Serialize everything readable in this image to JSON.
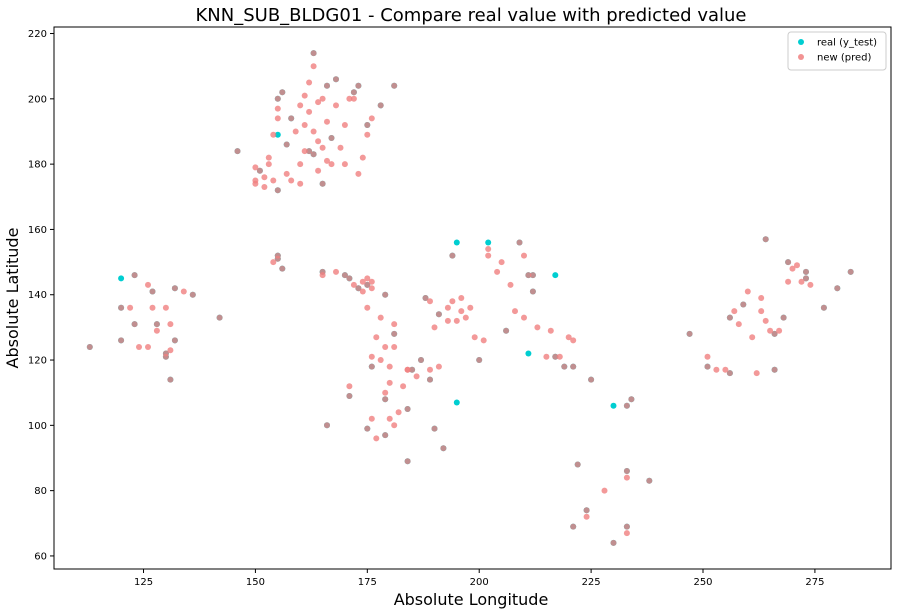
{
  "chart_data": {
    "type": "scatter",
    "title": "KNN_SUB_BLDG01 - Compare real value with predicted value",
    "xlabel": "Absolute Longitude",
    "ylabel": "Absolute Latitude",
    "xlim": [
      105,
      292
    ],
    "ylim": [
      56,
      222
    ],
    "xticks": [
      125,
      150,
      175,
      200,
      225,
      250,
      275
    ],
    "yticks": [
      60,
      80,
      100,
      120,
      140,
      160,
      180,
      200,
      220
    ],
    "grid": false,
    "legend_position": "top-right",
    "series": [
      {
        "name": "real (y_test)",
        "color": "#00CED1",
        "points": [
          [
            113,
            124
          ],
          [
            120,
            136
          ],
          [
            120,
            126
          ],
          [
            120,
            145
          ],
          [
            123,
            131
          ],
          [
            123,
            146
          ],
          [
            127,
            141
          ],
          [
            128,
            131
          ],
          [
            130,
            121
          ],
          [
            130,
            122
          ],
          [
            132,
            142
          ],
          [
            132,
            126
          ],
          [
            131,
            114
          ],
          [
            136,
            140
          ],
          [
            142,
            133
          ],
          [
            146,
            184
          ],
          [
            151,
            178
          ],
          [
            155,
            189
          ],
          [
            155,
            200
          ],
          [
            155,
            172
          ],
          [
            156,
            202
          ],
          [
            157,
            186
          ],
          [
            158,
            194
          ],
          [
            162,
            184
          ],
          [
            163,
            214
          ],
          [
            163,
            183
          ],
          [
            165,
            174
          ],
          [
            166,
            204
          ],
          [
            167,
            188
          ],
          [
            168,
            206
          ],
          [
            172,
            202
          ],
          [
            173,
            204
          ],
          [
            175,
            192
          ],
          [
            178,
            198
          ],
          [
            181,
            204
          ],
          [
            155,
            151
          ],
          [
            155,
            152
          ],
          [
            156,
            148
          ],
          [
            165,
            147
          ],
          [
            170,
            146
          ],
          [
            171,
            145
          ],
          [
            173,
            142
          ],
          [
            175,
            143
          ],
          [
            179,
            140
          ],
          [
            181,
            128
          ],
          [
            176,
            118
          ],
          [
            171,
            109
          ],
          [
            175,
            99
          ],
          [
            179,
            97
          ],
          [
            179,
            108
          ],
          [
            184,
            105
          ],
          [
            185,
            117
          ],
          [
            187,
            120
          ],
          [
            189,
            114
          ],
          [
            188,
            139
          ],
          [
            190,
            99
          ],
          [
            191,
            134
          ],
          [
            192,
            93
          ],
          [
            194,
            152
          ],
          [
            195,
            107
          ],
          [
            195,
            156
          ],
          [
            200,
            120
          ],
          [
            202,
            156
          ],
          [
            206,
            129
          ],
          [
            209,
            156
          ],
          [
            211,
            146
          ],
          [
            212,
            146
          ],
          [
            212,
            141
          ],
          [
            217,
            146
          ],
          [
            211,
            122
          ],
          [
            217,
            121
          ],
          [
            219,
            118
          ],
          [
            221,
            118
          ],
          [
            222,
            88
          ],
          [
            224,
            74
          ],
          [
            225,
            114
          ],
          [
            221,
            69
          ],
          [
            230,
            106
          ],
          [
            230,
            64
          ],
          [
            233,
            106
          ],
          [
            234,
            108
          ],
          [
            233,
            86
          ],
          [
            233,
            69
          ],
          [
            238,
            83
          ],
          [
            166,
            100
          ],
          [
            184,
            89
          ],
          [
            247,
            128
          ],
          [
            251,
            118
          ],
          [
            256,
            133
          ],
          [
            256,
            116
          ],
          [
            259,
            137
          ],
          [
            264,
            157
          ],
          [
            266,
            128
          ],
          [
            266,
            117
          ],
          [
            268,
            133
          ],
          [
            269,
            150
          ],
          [
            273,
            147
          ],
          [
            273,
            145
          ],
          [
            277,
            136
          ],
          [
            280,
            142
          ],
          [
            283,
            147
          ]
        ]
      },
      {
        "name": "new (pred)",
        "color": "#F08080",
        "points": [
          [
            113,
            124
          ],
          [
            120,
            136
          ],
          [
            120,
            126
          ],
          [
            122,
            136
          ],
          [
            123,
            131
          ],
          [
            123,
            146
          ],
          [
            124,
            124
          ],
          [
            126,
            124
          ],
          [
            127,
            141
          ],
          [
            126,
            143
          ],
          [
            127,
            136
          ],
          [
            128,
            131
          ],
          [
            128,
            129
          ],
          [
            130,
            136
          ],
          [
            130,
            121
          ],
          [
            130,
            122
          ],
          [
            131,
            131
          ],
          [
            131,
            123
          ],
          [
            132,
            142
          ],
          [
            132,
            126
          ],
          [
            131,
            114
          ],
          [
            134,
            141
          ],
          [
            136,
            140
          ],
          [
            142,
            133
          ],
          [
            146,
            184
          ],
          [
            150,
            174
          ],
          [
            150,
            175
          ],
          [
            150,
            179
          ],
          [
            151,
            178
          ],
          [
            152,
            176
          ],
          [
            153,
            180
          ],
          [
            152,
            173
          ],
          [
            153,
            182
          ],
          [
            154,
            175
          ],
          [
            154,
            189
          ],
          [
            155,
            200
          ],
          [
            155,
            172
          ],
          [
            155,
            194
          ],
          [
            155,
            197
          ],
          [
            156,
            202
          ],
          [
            157,
            186
          ],
          [
            157,
            177
          ],
          [
            158,
            194
          ],
          [
            158,
            175
          ],
          [
            159,
            190
          ],
          [
            160,
            180
          ],
          [
            160,
            198
          ],
          [
            160,
            174
          ],
          [
            161,
            192
          ],
          [
            161,
            184
          ],
          [
            161,
            201
          ],
          [
            162,
            205
          ],
          [
            162,
            196
          ],
          [
            162,
            184
          ],
          [
            163,
            214
          ],
          [
            163,
            183
          ],
          [
            163,
            210
          ],
          [
            163,
            190
          ],
          [
            164,
            178
          ],
          [
            164,
            187
          ],
          [
            164,
            199
          ],
          [
            165,
            174
          ],
          [
            165,
            200
          ],
          [
            165,
            185
          ],
          [
            166,
            181
          ],
          [
            166,
            193
          ],
          [
            166,
            204
          ],
          [
            167,
            188
          ],
          [
            167,
            180
          ],
          [
            168,
            206
          ],
          [
            168,
            198
          ],
          [
            169,
            185
          ],
          [
            170,
            180
          ],
          [
            170,
            192
          ],
          [
            171,
            200
          ],
          [
            172,
            202
          ],
          [
            173,
            204
          ],
          [
            172,
            200
          ],
          [
            173,
            177
          ],
          [
            174,
            182
          ],
          [
            175,
            192
          ],
          [
            175,
            189
          ],
          [
            176,
            194
          ],
          [
            178,
            198
          ],
          [
            181,
            204
          ],
          [
            154,
            150
          ],
          [
            155,
            151
          ],
          [
            155,
            152
          ],
          [
            156,
            148
          ],
          [
            165,
            147
          ],
          [
            165,
            146
          ],
          [
            168,
            147
          ],
          [
            170,
            146
          ],
          [
            171,
            145
          ],
          [
            172,
            143
          ],
          [
            173,
            142
          ],
          [
            174,
            141
          ],
          [
            174,
            144
          ],
          [
            175,
            143
          ],
          [
            175,
            145
          ],
          [
            175,
            136
          ],
          [
            176,
            142
          ],
          [
            176,
            144
          ],
          [
            177,
            127
          ],
          [
            176,
            121
          ],
          [
            178,
            133
          ],
          [
            178,
            120
          ],
          [
            179,
            140
          ],
          [
            179,
            124
          ],
          [
            180,
            113
          ],
          [
            179,
            110
          ],
          [
            180,
            118
          ],
          [
            181,
            128
          ],
          [
            181,
            124
          ],
          [
            181,
            131
          ],
          [
            180,
            102
          ],
          [
            181,
            100
          ],
          [
            182,
            104
          ],
          [
            183,
            112
          ],
          [
            184,
            117
          ],
          [
            176,
            118
          ],
          [
            171,
            109
          ],
          [
            171,
            112
          ],
          [
            175,
            99
          ],
          [
            176,
            102
          ],
          [
            177,
            96
          ],
          [
            179,
            97
          ],
          [
            179,
            108
          ],
          [
            184,
            105
          ],
          [
            184,
            117
          ],
          [
            185,
            117
          ],
          [
            186,
            115
          ],
          [
            187,
            120
          ],
          [
            189,
            114
          ],
          [
            189,
            117
          ],
          [
            188,
            139
          ],
          [
            189,
            138
          ],
          [
            190,
            130
          ],
          [
            191,
            134
          ],
          [
            190,
            99
          ],
          [
            191,
            118
          ],
          [
            192,
            93
          ],
          [
            193,
            132
          ],
          [
            193,
            136
          ],
          [
            194,
            138
          ],
          [
            194,
            152
          ],
          [
            195,
            132
          ],
          [
            196,
            135
          ],
          [
            196,
            139
          ],
          [
            197,
            133
          ],
          [
            198,
            136
          ],
          [
            199,
            127
          ],
          [
            200,
            120
          ],
          [
            201,
            126
          ],
          [
            202,
            154
          ],
          [
            202,
            152
          ],
          [
            204,
            147
          ],
          [
            205,
            150
          ],
          [
            206,
            129
          ],
          [
            207,
            143
          ],
          [
            208,
            135
          ],
          [
            209,
            156
          ],
          [
            210,
            152
          ],
          [
            211,
            146
          ],
          [
            212,
            146
          ],
          [
            212,
            141
          ],
          [
            210,
            133
          ],
          [
            213,
            130
          ],
          [
            215,
            121
          ],
          [
            216,
            129
          ],
          [
            217,
            121
          ],
          [
            218,
            121
          ],
          [
            219,
            118
          ],
          [
            220,
            127
          ],
          [
            221,
            118
          ],
          [
            221,
            126
          ],
          [
            222,
            88
          ],
          [
            224,
            74
          ],
          [
            224,
            72
          ],
          [
            225,
            114
          ],
          [
            221,
            69
          ],
          [
            228,
            80
          ],
          [
            230,
            64
          ],
          [
            233,
            106
          ],
          [
            234,
            108
          ],
          [
            233,
            86
          ],
          [
            233,
            84
          ],
          [
            233,
            69
          ],
          [
            233,
            67
          ],
          [
            238,
            83
          ],
          [
            166,
            100
          ],
          [
            184,
            89
          ],
          [
            247,
            128
          ],
          [
            251,
            118
          ],
          [
            251,
            121
          ],
          [
            253,
            117
          ],
          [
            255,
            117
          ],
          [
            256,
            133
          ],
          [
            256,
            116
          ],
          [
            257,
            135
          ],
          [
            258,
            131
          ],
          [
            259,
            137
          ],
          [
            260,
            141
          ],
          [
            261,
            127
          ],
          [
            262,
            116
          ],
          [
            263,
            135
          ],
          [
            263,
            139
          ],
          [
            264,
            132
          ],
          [
            264,
            157
          ],
          [
            265,
            129
          ],
          [
            266,
            128
          ],
          [
            266,
            117
          ],
          [
            267,
            129
          ],
          [
            268,
            133
          ],
          [
            269,
            150
          ],
          [
            269,
            144
          ],
          [
            270,
            148
          ],
          [
            271,
            149
          ],
          [
            272,
            144
          ],
          [
            273,
            147
          ],
          [
            273,
            145
          ],
          [
            274,
            143
          ],
          [
            277,
            136
          ],
          [
            280,
            142
          ],
          [
            283,
            147
          ]
        ]
      }
    ]
  }
}
